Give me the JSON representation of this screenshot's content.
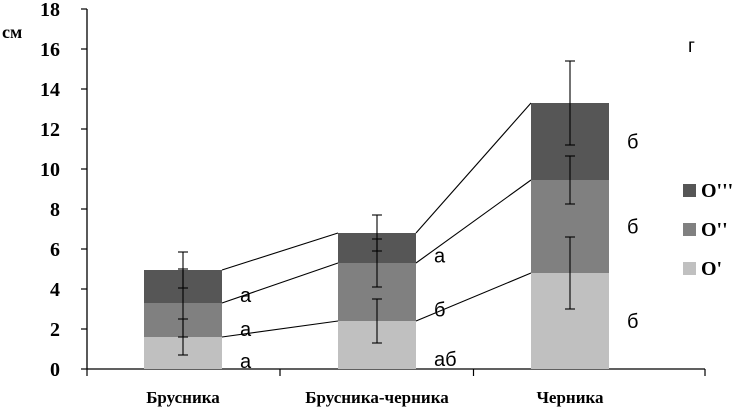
{
  "chart_data": {
    "type": "bar",
    "stacked": true,
    "y_unit_label": "см",
    "panel_label": "г",
    "ylim": [
      0,
      18
    ],
    "yticks": [
      0,
      2,
      4,
      6,
      8,
      10,
      12,
      14,
      16,
      18
    ],
    "categories": [
      "Брусника",
      "Брусника-черника",
      "Черника"
    ],
    "series": [
      {
        "name": "O'",
        "color": "#c0c0c0",
        "values": [
          1.6,
          2.4,
          4.8
        ],
        "error": [
          0.9,
          1.1,
          1.8
        ],
        "significance": [
          "а",
          "аб",
          "б"
        ]
      },
      {
        "name": "O''",
        "color": "#808080",
        "values": [
          1.7,
          2.9,
          4.65
        ],
        "error": [
          1.7,
          1.2,
          1.2
        ],
        "significance": [
          "а",
          "б",
          "б"
        ]
      },
      {
        "name": "O'''",
        "color": "#565656",
        "values": [
          1.65,
          1.5,
          3.85
        ],
        "error": [
          0.9,
          0.9,
          2.1
        ],
        "significance": [
          "а",
          "а",
          "б"
        ]
      }
    ],
    "grid": false,
    "legend_position": "right",
    "connector_lines": true
  }
}
